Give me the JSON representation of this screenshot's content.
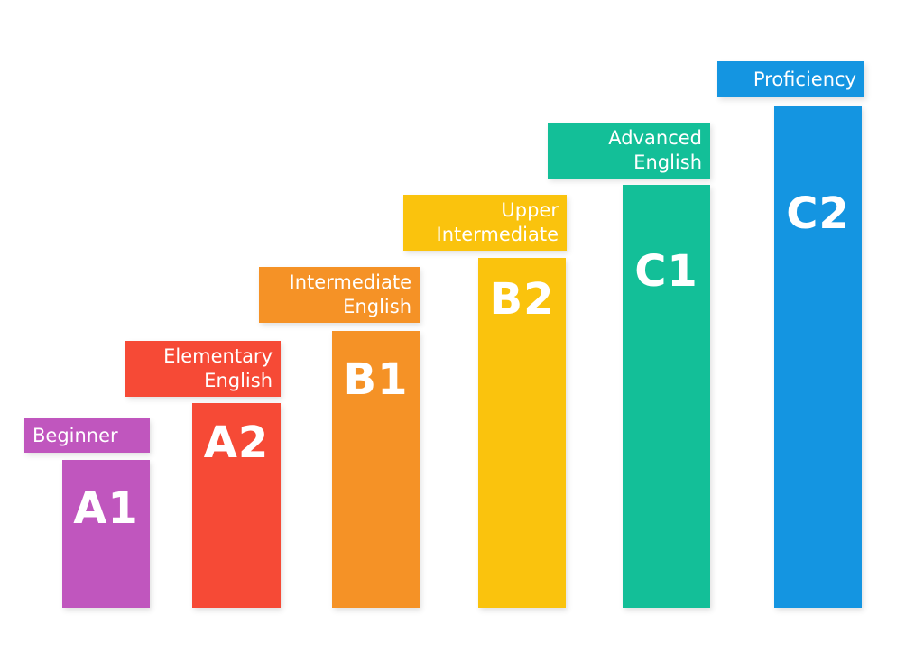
{
  "levels": [
    {
      "code": "A1",
      "label_lines": [
        "Beginner"
      ],
      "color": "#c056be"
    },
    {
      "code": "A2",
      "label_lines": [
        "Elementary",
        "English"
      ],
      "color": "#f64a36"
    },
    {
      "code": "B1",
      "label_lines": [
        "Intermediate",
        "English"
      ],
      "color": "#f59226"
    },
    {
      "code": "B2",
      "label_lines": [
        "Upper",
        "Intermediate"
      ],
      "color": "#fac30d"
    },
    {
      "code": "C1",
      "label_lines": [
        "Advanced",
        "English"
      ],
      "color": "#13bf98"
    },
    {
      "code": "C2",
      "label_lines": [
        "Proficiency"
      ],
      "color": "#1495e1"
    }
  ]
}
